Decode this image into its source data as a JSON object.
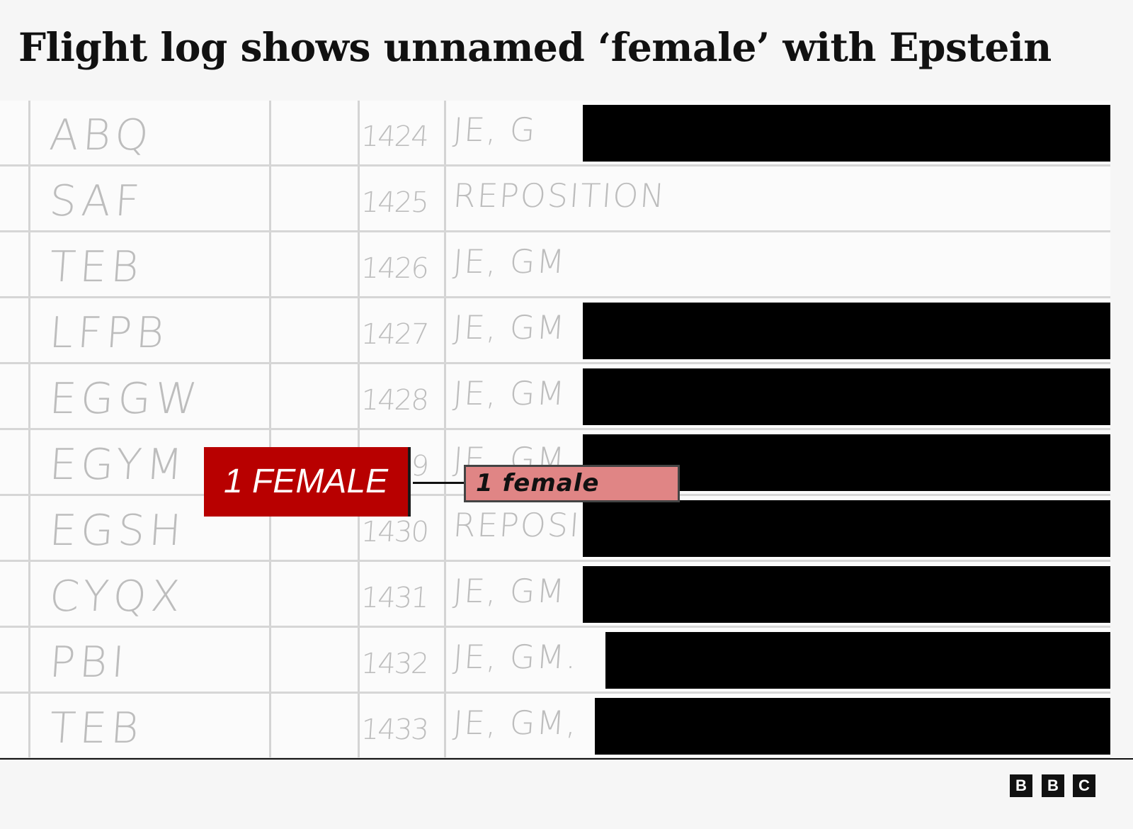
{
  "title": "Flight log shows unnamed ‘female’ with Epstein",
  "rows": [
    {
      "airport": "ABQ",
      "flight": "1424",
      "passengers": "JE, G",
      "redacted": true
    },
    {
      "airport": "SAF",
      "flight": "1425",
      "passengers": "REPOSITION",
      "redacted": false
    },
    {
      "airport": "TEB",
      "flight": "1426",
      "passengers": "JE, GM",
      "redacted": false
    },
    {
      "airport": "LFPB",
      "flight": "1427",
      "passengers": "JE, GM",
      "redacted": true
    },
    {
      "airport": "EGGW",
      "flight": "1428",
      "passengers": "JE, GM",
      "redacted": true
    },
    {
      "airport": "EGYM",
      "flight": "1429",
      "passengers": "JE, GM",
      "redacted": true
    },
    {
      "airport": "EGSH",
      "flight": "1430",
      "passengers": "REPOSI",
      "redacted": true
    },
    {
      "airport": "CYQX",
      "flight": "1431",
      "passengers": "JE, GM",
      "redacted": true
    },
    {
      "airport": "PBI",
      "flight": "1432",
      "passengers": "JE, GM.",
      "redacted": true
    },
    {
      "airport": "TEB",
      "flight": "1433",
      "passengers": "JE, GM,",
      "redacted": true
    }
  ],
  "annotation": {
    "label": "1 FEMALE",
    "highlighted_text": "1 female",
    "label_color": "#b80000",
    "highlight_color": "#e08585"
  },
  "logo": [
    "B",
    "B",
    "C"
  ]
}
